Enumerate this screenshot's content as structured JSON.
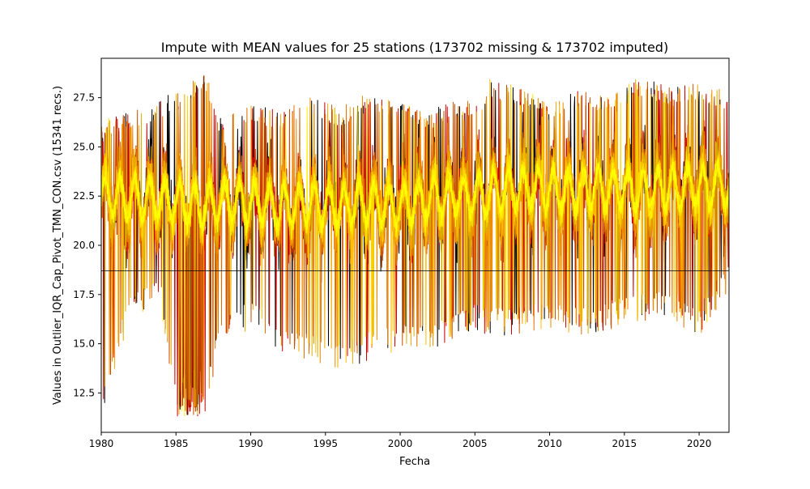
{
  "chart_data": {
    "type": "line",
    "title": "Impute with MEAN values for 25 stations (173702 missing & 173702 imputed)",
    "xlabel": "Fecha",
    "ylabel": "Values in Outlier_IQR_Cap_Pivot_TMN_CON.csv (15341 recs.)",
    "xlim": [
      1980.0,
      2022.0
    ],
    "ylim": [
      10.5,
      29.5
    ],
    "x_ticks": [
      1980,
      1985,
      1990,
      1995,
      2000,
      2005,
      2010,
      2015,
      2020
    ],
    "x_tick_labels": [
      "1980",
      "1985",
      "1990",
      "1995",
      "2000",
      "2005",
      "2010",
      "2015",
      "2020"
    ],
    "y_ticks": [
      12.5,
      15.0,
      17.5,
      20.0,
      22.5,
      25.0,
      27.5
    ],
    "y_tick_labels": [
      "12.5",
      "15.0",
      "17.5",
      "20.0",
      "22.5",
      "25.0",
      "27.5"
    ],
    "grid": false,
    "legend": "none",
    "station_count": 25,
    "series_colors": [
      "#000000",
      "#c80000",
      "#c85000",
      "#e07000",
      "#f08c00",
      "#f5a800",
      "#d4b000",
      "#ffc000",
      "#ffd800",
      "#ffee00",
      "#ffff00"
    ],
    "imputed_mean_value": 18.7,
    "approx_envelope": {
      "year": [
        1980,
        1982,
        1984,
        1985,
        1986,
        1987,
        1988,
        1990,
        1992,
        1994,
        1996,
        1998,
        2000,
        2002,
        2004,
        2005,
        2006,
        2008,
        2010,
        2012,
        2014,
        2016,
        2018,
        2020,
        2022
      ],
      "max": [
        26.5,
        26.8,
        27.5,
        27.8,
        28.3,
        28.7,
        26.5,
        27.2,
        26.8,
        27.5,
        27.0,
        27.8,
        27.5,
        26.9,
        27.4,
        27.3,
        28.5,
        28.1,
        27.3,
        27.9,
        27.5,
        28.6,
        28.0,
        28.3,
        27.8
      ],
      "min": [
        11.3,
        16.5,
        16.8,
        11.3,
        11.3,
        11.3,
        15.2,
        15.7,
        14.5,
        14.0,
        13.6,
        14.2,
        14.5,
        14.4,
        15.2,
        15.7,
        15.3,
        15.5,
        15.8,
        15.4,
        15.7,
        16.0,
        16.2,
        15.4,
        17.7
      ],
      "center": [
        22.5,
        22.4,
        22.3,
        22.2,
        22.1,
        22.0,
        22.3,
        22.2,
        22.0,
        22.1,
        22.0,
        22.2,
        22.0,
        22.4,
        22.6,
        22.5,
        22.7,
        22.9,
        22.8,
        22.8,
        22.9,
        22.8,
        22.9,
        23.0,
        23.0
      ]
    }
  }
}
